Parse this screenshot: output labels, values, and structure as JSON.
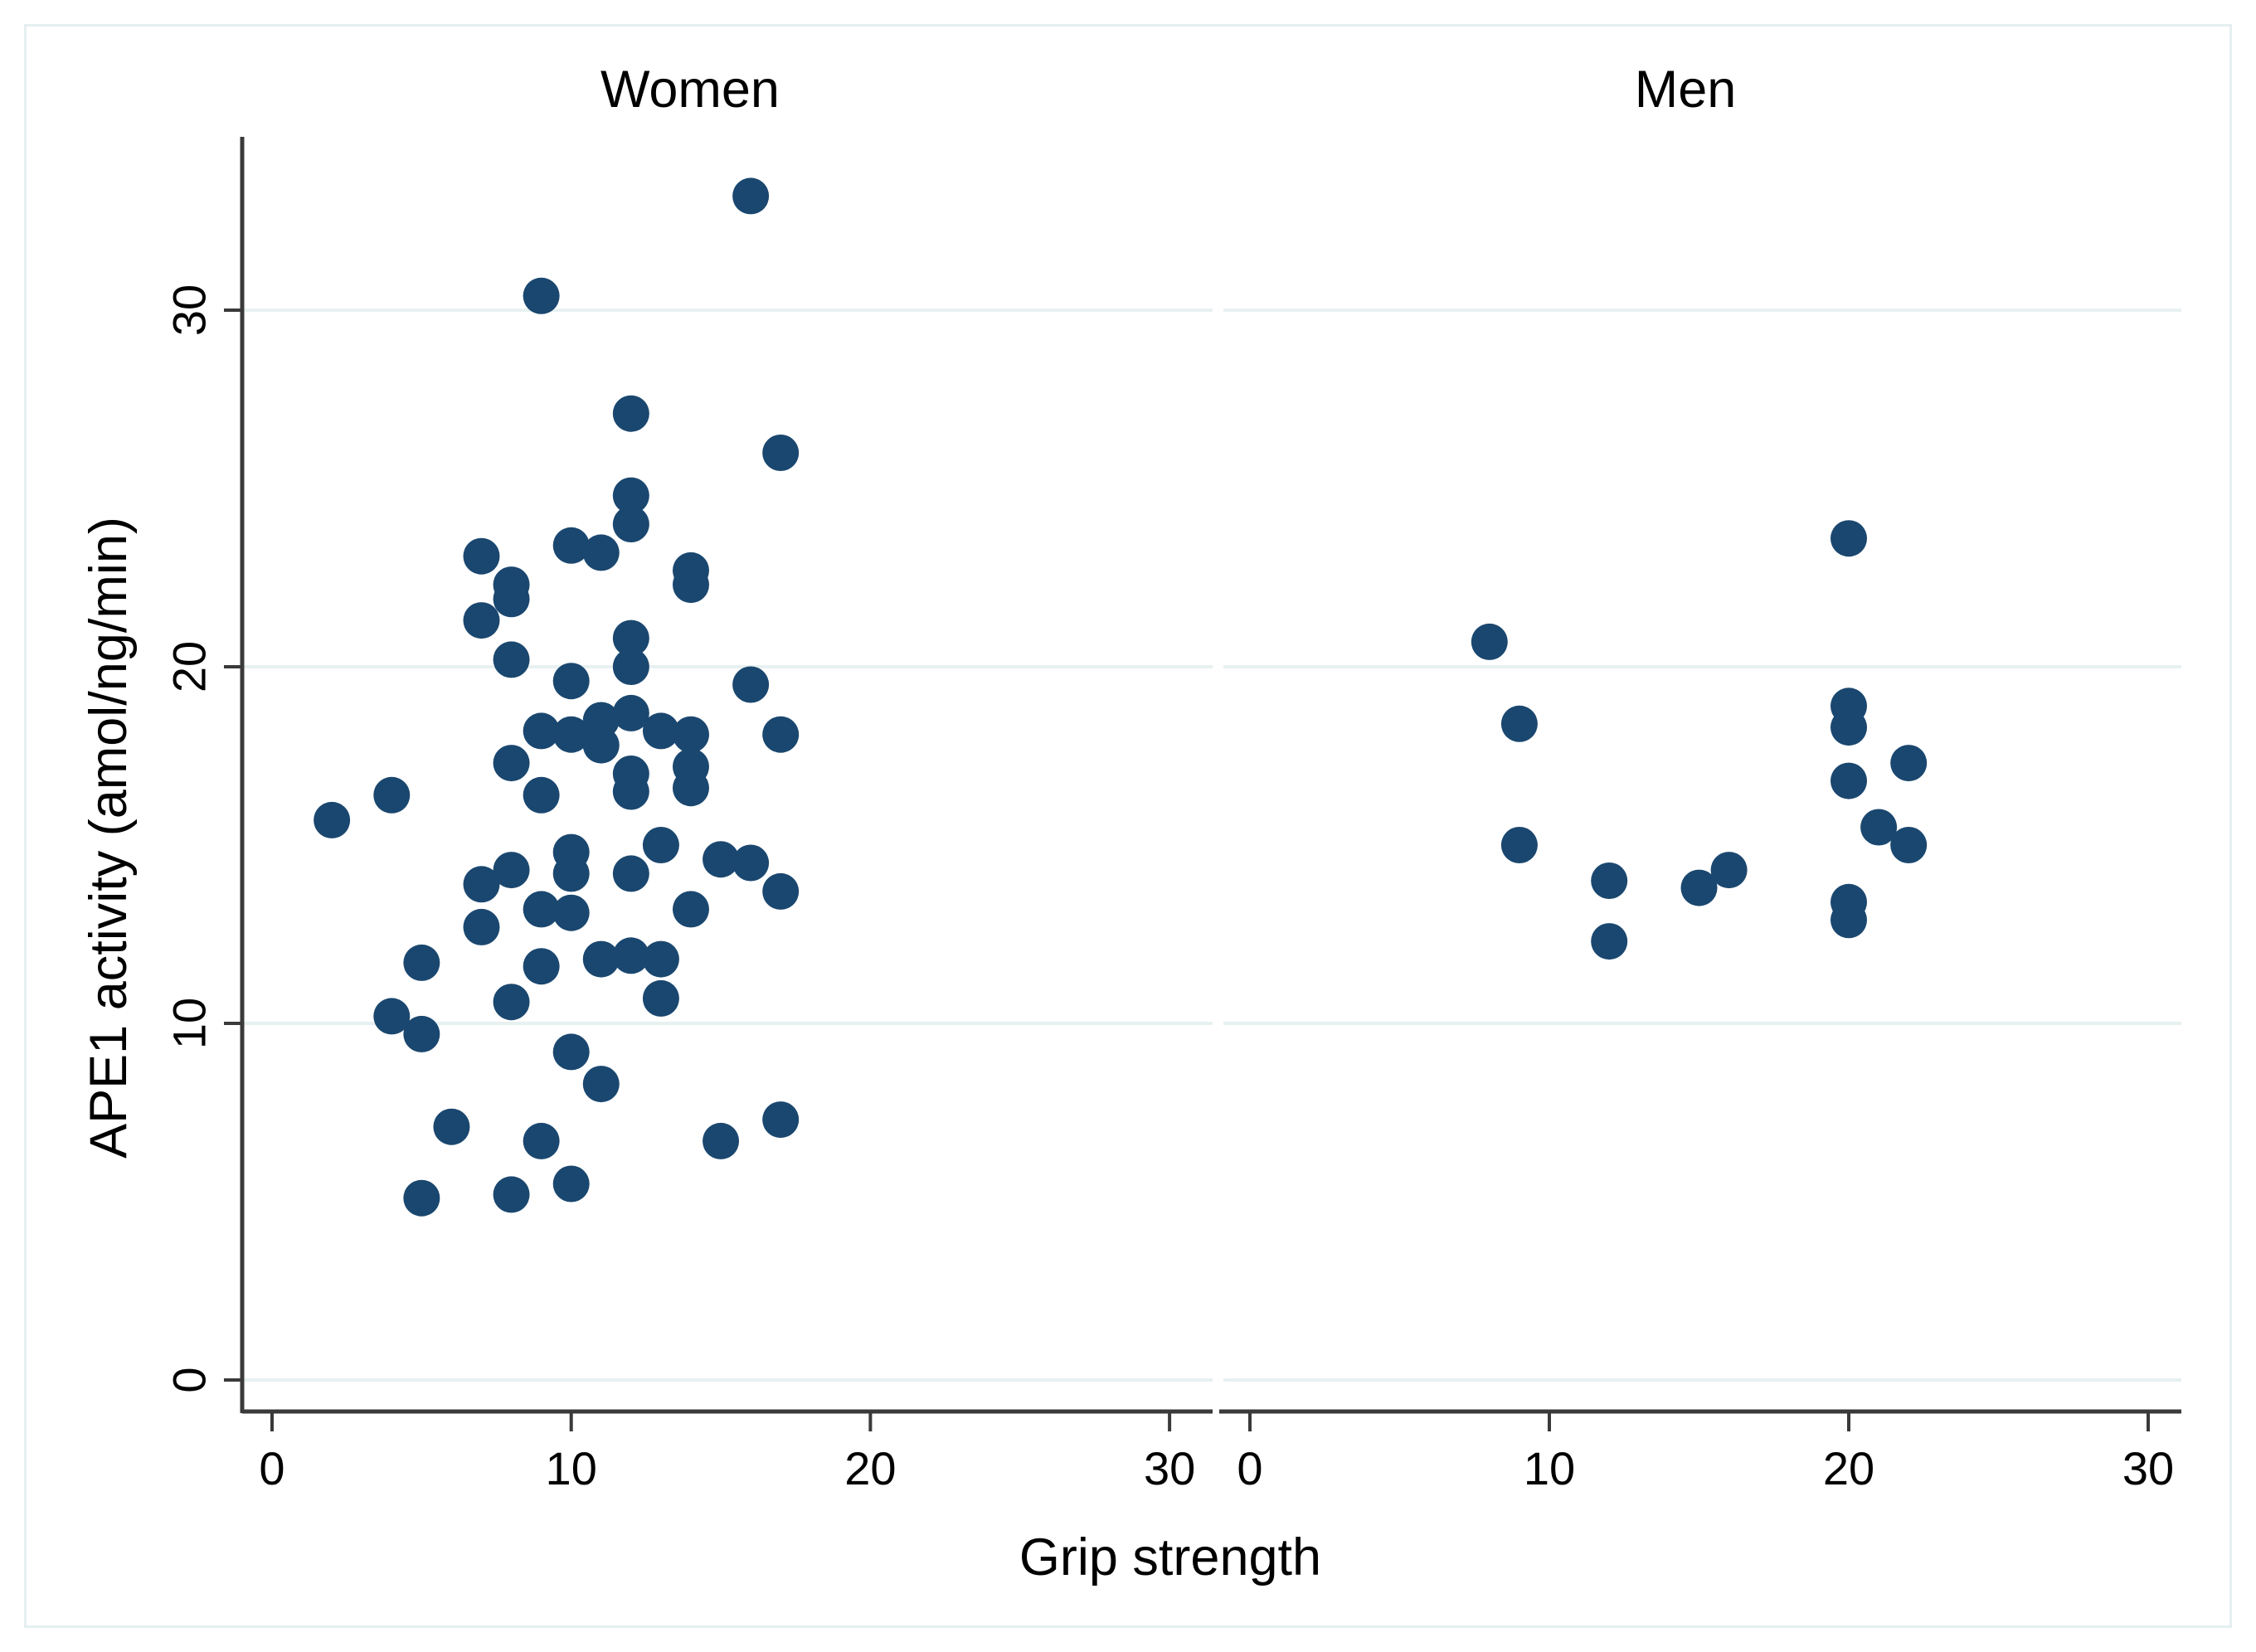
{
  "figure": {
    "panel_titles": [
      "Women",
      "Men"
    ],
    "xlabel": "Grip strength",
    "ylabel": "APE1 activity (amol/ng/min)"
  },
  "colors": {
    "marker": "#1a476f",
    "gridline": "#e8f1f1",
    "axis": "#3a3a3a",
    "frame": "#e5efef",
    "text": "#000000",
    "background": "#ffffff"
  },
  "chart_data": {
    "type": "scatter",
    "title": "",
    "xlabel": "Grip strength",
    "ylabel": "APE1 activity (amol/ng/min)",
    "x_ticks": [
      0,
      10,
      20,
      30
    ],
    "y_ticks": [
      0,
      10,
      20,
      30
    ],
    "xlim": [
      0,
      32
    ],
    "ylim": [
      0,
      34
    ],
    "grid": "horizontal-only",
    "legend_position": "none",
    "panels": [
      {
        "title": "Women",
        "points": [
          [
            16,
            33.2
          ],
          [
            9,
            30.4
          ],
          [
            12,
            27.1
          ],
          [
            17,
            26.0
          ],
          [
            12,
            24.8
          ],
          [
            12,
            24.0
          ],
          [
            10,
            23.4
          ],
          [
            11,
            23.2
          ],
          [
            7,
            23.1
          ],
          [
            14,
            22.7
          ],
          [
            8,
            22.3
          ],
          [
            14,
            22.3
          ],
          [
            8,
            21.9
          ],
          [
            7,
            21.3
          ],
          [
            12,
            20.8
          ],
          [
            8,
            20.2
          ],
          [
            12,
            20.0
          ],
          [
            10,
            19.6
          ],
          [
            16,
            19.5
          ],
          [
            12,
            18.7
          ],
          [
            11,
            18.5
          ],
          [
            9,
            18.2
          ],
          [
            13,
            18.2
          ],
          [
            10,
            18.1
          ],
          [
            14,
            18.1
          ],
          [
            17,
            18.1
          ],
          [
            11,
            17.8
          ],
          [
            8,
            17.3
          ],
          [
            14,
            17.2
          ],
          [
            12,
            17.0
          ],
          [
            14,
            16.6
          ],
          [
            12,
            16.5
          ],
          [
            4,
            16.4
          ],
          [
            9,
            16.4
          ],
          [
            2,
            15.7
          ],
          [
            13,
            15.0
          ],
          [
            10,
            14.8
          ],
          [
            15,
            14.6
          ],
          [
            16,
            14.5
          ],
          [
            8,
            14.3
          ],
          [
            10,
            14.2
          ],
          [
            12,
            14.2
          ],
          [
            7,
            13.9
          ],
          [
            17,
            13.7
          ],
          [
            9,
            13.2
          ],
          [
            14,
            13.2
          ],
          [
            10,
            13.1
          ],
          [
            7,
            12.7
          ],
          [
            12,
            11.9
          ],
          [
            11,
            11.8
          ],
          [
            13,
            11.8
          ],
          [
            5,
            11.7
          ],
          [
            9,
            11.6
          ],
          [
            13,
            10.7
          ],
          [
            8,
            10.6
          ],
          [
            4,
            10.2
          ],
          [
            5,
            9.7
          ],
          [
            10,
            9.2
          ],
          [
            11,
            8.3
          ],
          [
            17,
            7.3
          ],
          [
            6,
            7.1
          ],
          [
            9,
            6.7
          ],
          [
            15,
            6.7
          ],
          [
            10,
            5.5
          ],
          [
            8,
            5.2
          ],
          [
            5,
            5.1
          ]
        ]
      },
      {
        "title": "Men",
        "points": [
          [
            20,
            23.6
          ],
          [
            8,
            20.7
          ],
          [
            20,
            18.9
          ],
          [
            9,
            18.4
          ],
          [
            20,
            18.3
          ],
          [
            22,
            17.3
          ],
          [
            20,
            16.8
          ],
          [
            21,
            15.5
          ],
          [
            9,
            15.0
          ],
          [
            22,
            15.0
          ],
          [
            16,
            14.3
          ],
          [
            12,
            14.0
          ],
          [
            15,
            13.8
          ],
          [
            20,
            13.4
          ],
          [
            20,
            12.9
          ],
          [
            12,
            12.3
          ]
        ]
      }
    ]
  }
}
